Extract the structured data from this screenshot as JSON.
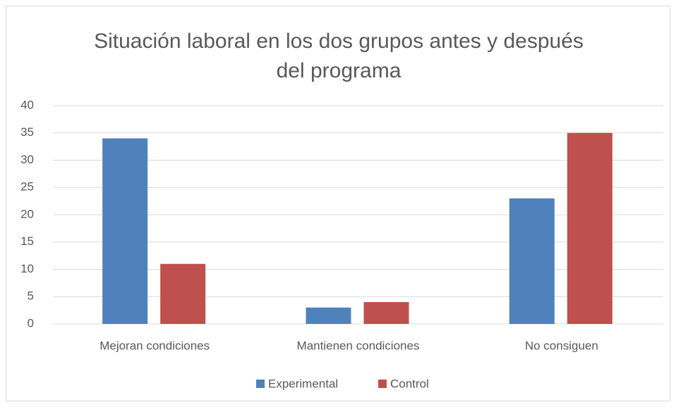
{
  "chart_data": {
    "type": "bar",
    "title": "Situación laboral en los dos grupos antes y después del programa",
    "categories": [
      "Mejoran condiciones",
      "Mantienen condiciones",
      "No consiguen"
    ],
    "series": [
      {
        "name": "Experimental",
        "color": "#4f81bd",
        "values": [
          34,
          3,
          23
        ]
      },
      {
        "name": "Control",
        "color": "#c0504d",
        "values": [
          11,
          4,
          35
        ]
      }
    ],
    "ylim": [
      0,
      40
    ],
    "yticks": [
      0,
      5,
      10,
      15,
      20,
      25,
      30,
      35,
      40
    ],
    "grid": true,
    "legend": "bottom"
  }
}
